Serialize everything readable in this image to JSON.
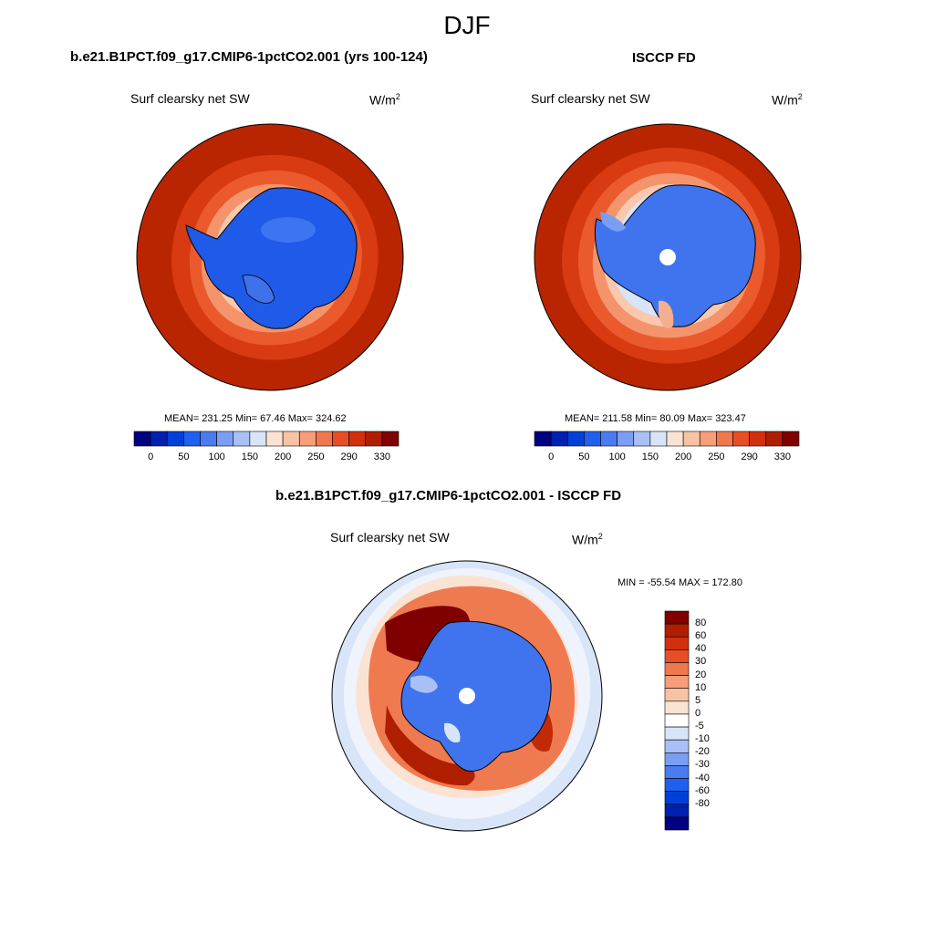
{
  "title": "DJF",
  "panels": {
    "top_left": {
      "case": "b.e21.B1PCT.f09_g17.CMIP6-1pctCO2.001 (yrs 100-124)",
      "variable": "Surf clearsky net SW",
      "units": "W/m",
      "units_sup": "2",
      "stats": "MEAN= 231.25  Min=  67.46  Max= 324.62"
    },
    "top_right": {
      "case": "ISCCP FD",
      "variable": "Surf clearsky net SW",
      "units": "W/m",
      "units_sup": "2",
      "stats": "MEAN= 211.58  Min=  80.09  Max= 323.47"
    },
    "bottom": {
      "case": "b.e21.B1PCT.f09_g17.CMIP6-1pctCO2.001 - ISCCP FD",
      "variable": "Surf clearsky net SW",
      "units": "W/m",
      "units_sup": "2",
      "stats": "MIN = -55.54 MAX = 172.80"
    }
  },
  "colorbar_abs": {
    "colors": [
      "#000080",
      "#0020b0",
      "#0040d8",
      "#2060f0",
      "#4a7cf0",
      "#7a9ef2",
      "#a8c0f5",
      "#d8e4f8",
      "#fbe3d3",
      "#f8c3a4",
      "#f59e79",
      "#f0784e",
      "#e84e26",
      "#d22f0e",
      "#b01e00",
      "#800000"
    ],
    "ticks": [
      "0",
      "50",
      "100",
      "150",
      "200",
      "250",
      "290",
      "330"
    ]
  },
  "colorbar_diff": {
    "colors": [
      "#800000",
      "#b01e00",
      "#d22f0e",
      "#e84e26",
      "#f0784e",
      "#f59e79",
      "#f8c3a4",
      "#fbe3d3",
      "#ffffff",
      "#d8e4f8",
      "#a8c0f5",
      "#7a9ef2",
      "#4a7cf0",
      "#2060f0",
      "#0040d8",
      "#0020b0",
      "#000080"
    ],
    "ticks": [
      "80",
      "60",
      "40",
      "30",
      "20",
      "10",
      "5",
      "0",
      "-5",
      "-10",
      "-20",
      "-30",
      "-40",
      "-60",
      "-80"
    ]
  }
}
